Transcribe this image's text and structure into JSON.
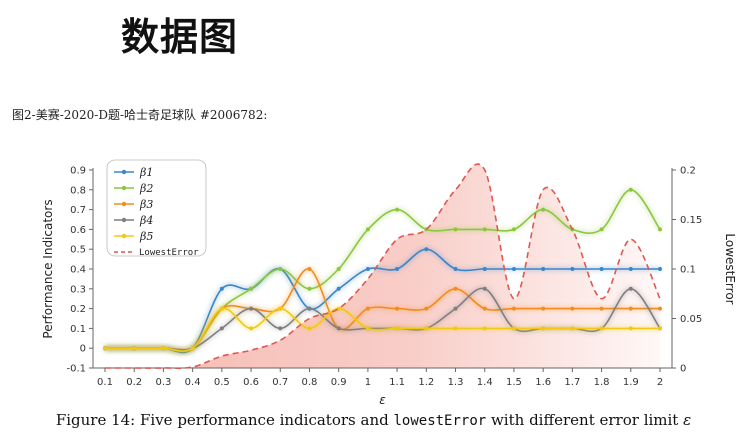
{
  "page_title": "数据图",
  "subtitle": "图2-美赛-2020-D题-哈士奇足球队 #2006782:",
  "caption": {
    "prefix": "Figure 14: Five performance indicators and ",
    "code": "lowestError",
    "middle": " with different error limit ",
    "symbol": "ε"
  },
  "colors": {
    "beta1": "#3a86c8",
    "beta2": "#8cc63f",
    "beta3": "#f28c1e",
    "beta4": "#7f7f7f",
    "beta5": "#f2c811",
    "lowest": "#e0574f",
    "fill": "#f4a49a"
  },
  "chart_data": {
    "type": "line",
    "title": "",
    "xlabel": "ε",
    "ylabel": "Performance Indicators",
    "y2label": "LowestError",
    "x": [
      0.1,
      0.2,
      0.3,
      0.4,
      0.5,
      0.6,
      0.7,
      0.8,
      0.9,
      1.0,
      1.1,
      1.2,
      1.3,
      1.4,
      1.5,
      1.6,
      1.7,
      1.8,
      1.9,
      2.0
    ],
    "x_tick_labels": [
      "0.1",
      "0.2",
      "0.3",
      "0.4",
      "0.5",
      "0.6",
      "0.7",
      "0.8",
      "0.9",
      "1",
      "1.1",
      "1.2",
      "1.3",
      "1.4",
      "1.5",
      "1.6",
      "1.7",
      "1.8",
      "1.9",
      "2"
    ],
    "ylim": [
      -0.1,
      0.9
    ],
    "y_ticks": [
      -0.1,
      0,
      0.1,
      0.2,
      0.3,
      0.4,
      0.5,
      0.6,
      0.7,
      0.8,
      0.9
    ],
    "y2lim": [
      0,
      0.2
    ],
    "y2_ticks": [
      0,
      0.05,
      0.1,
      0.15,
      0.2
    ],
    "legend_position": "top-left",
    "series": [
      {
        "name": "β1",
        "key": "beta1",
        "axis": "left",
        "values": [
          0,
          0,
          0,
          0,
          0.3,
          0.3,
          0.4,
          0.2,
          0.3,
          0.4,
          0.4,
          0.5,
          0.4,
          0.4,
          0.4,
          0.4,
          0.4,
          0.4,
          0.4,
          0.4
        ]
      },
      {
        "name": "β2",
        "key": "beta2",
        "axis": "left",
        "values": [
          0,
          0,
          0,
          0,
          0.2,
          0.3,
          0.4,
          0.3,
          0.4,
          0.6,
          0.7,
          0.6,
          0.6,
          0.6,
          0.6,
          0.7,
          0.6,
          0.6,
          0.8,
          0.6
        ]
      },
      {
        "name": "β3",
        "key": "beta3",
        "axis": "left",
        "values": [
          0,
          0,
          0,
          0,
          0.2,
          0.2,
          0.2,
          0.4,
          0.1,
          0.2,
          0.2,
          0.2,
          0.3,
          0.2,
          0.2,
          0.2,
          0.2,
          0.2,
          0.2,
          0.2
        ]
      },
      {
        "name": "β4",
        "key": "beta4",
        "axis": "left",
        "values": [
          0,
          0,
          0,
          0,
          0.1,
          0.2,
          0.1,
          0.2,
          0.1,
          0.1,
          0.1,
          0.1,
          0.2,
          0.3,
          0.1,
          0.1,
          0.1,
          0.1,
          0.3,
          0.1
        ]
      },
      {
        "name": "β5",
        "key": "beta5",
        "axis": "left",
        "values": [
          0,
          0,
          0,
          0,
          0.2,
          0.1,
          0.2,
          0.1,
          0.2,
          0.1,
          0.1,
          0.1,
          0.1,
          0.1,
          0.1,
          0.1,
          0.1,
          0.1,
          0.1,
          0.1
        ]
      },
      {
        "name": "LowestError",
        "key": "lowest",
        "axis": "right",
        "style": "dashed",
        "values": [
          0,
          0,
          0,
          0.001,
          0.012,
          0.018,
          0.028,
          0.05,
          0.06,
          0.09,
          0.13,
          0.14,
          0.18,
          0.2,
          0.07,
          0.18,
          0.14,
          0.07,
          0.13,
          0.07
        ]
      }
    ]
  }
}
